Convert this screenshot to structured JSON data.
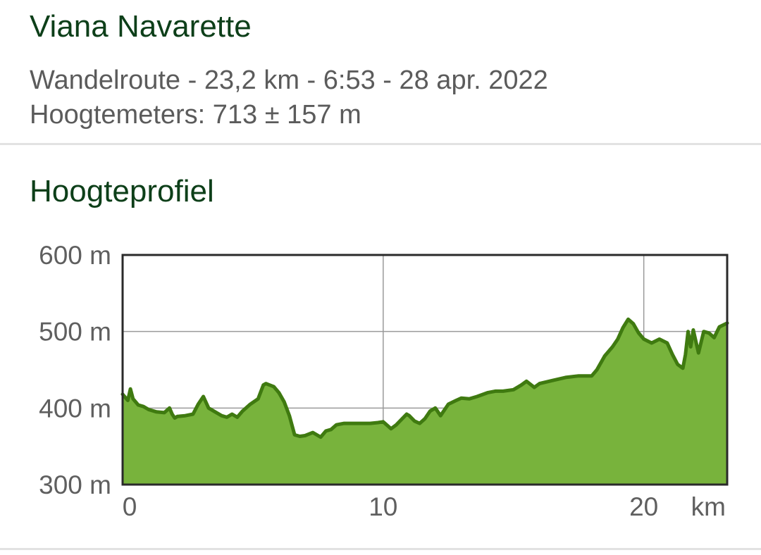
{
  "route": {
    "title": "Viana Navarette",
    "summary": "Wandelroute - 23,2 km - 6:53 - 28 apr. 2022",
    "elevation_gain": "Hoogtemeters: 713 ± 157 m"
  },
  "profile": {
    "section_title": "Hoogteprofiel"
  },
  "colors": {
    "title": "#0d3f19",
    "meta_text": "#5b5b5b",
    "area_fill": "#78b33c",
    "profile_line": "#3f7a10",
    "grid": "#9a9a9a",
    "frame": "#2a2a2a"
  },
  "chart_data": {
    "type": "area",
    "title": "Hoogteprofiel",
    "xlabel": "km",
    "ylabel": "",
    "xlim": [
      0,
      23.2
    ],
    "ylim": [
      300,
      600
    ],
    "x_ticks": [
      0,
      10,
      20
    ],
    "x_tick_labels": [
      "0",
      "10",
      "20"
    ],
    "x_unit_label": "km",
    "y_ticks": [
      300,
      400,
      500,
      600
    ],
    "y_tick_labels": [
      "300 m",
      "400 m",
      "500 m",
      "600 m"
    ],
    "grid": true,
    "legend": "none",
    "series": [
      {
        "x": [
          0,
          0.2,
          0.3,
          0.4,
          0.6,
          0.8,
          1.0,
          1.3,
          1.6,
          1.8,
          1.9,
          2.0,
          2.1,
          2.4,
          2.7,
          2.9,
          3.1,
          3.3,
          3.5,
          3.8,
          4.0,
          4.2,
          4.4,
          4.6,
          4.9,
          5.2,
          5.4,
          5.5,
          5.8,
          6.0,
          6.2,
          6.4,
          6.6,
          6.8,
          7.0,
          7.3,
          7.6,
          7.8,
          8.0,
          8.2,
          8.5,
          9.0,
          9.5,
          9.8,
          10.0,
          10.2,
          10.3,
          10.5,
          10.7,
          10.9,
          11.0,
          11.2,
          11.4,
          11.6,
          11.8,
          12.0,
          12.2,
          12.5,
          12.8,
          13.0,
          13.3,
          13.6,
          14.0,
          14.3,
          14.6,
          15.0,
          15.3,
          15.5,
          15.8,
          16.0,
          16.5,
          17.0,
          17.5,
          18.0,
          18.2,
          18.5,
          18.8,
          19.0,
          19.2,
          19.4,
          19.6,
          19.8,
          20.0,
          20.3,
          20.6,
          20.9,
          21.1,
          21.3,
          21.5,
          21.6,
          21.7,
          21.8,
          21.9,
          22.1,
          22.3,
          22.5,
          22.7,
          22.9,
          23.2
        ],
        "y": [
          418,
          410,
          425,
          412,
          404,
          402,
          398,
          395,
          394,
          400,
          392,
          387,
          389,
          390,
          392,
          405,
          415,
          400,
          396,
          390,
          388,
          392,
          388,
          396,
          405,
          412,
          430,
          432,
          428,
          420,
          408,
          390,
          365,
          363,
          364,
          368,
          362,
          370,
          372,
          378,
          380,
          380,
          380,
          381,
          382,
          376,
          373,
          378,
          385,
          392,
          390,
          383,
          380,
          386,
          396,
          400,
          390,
          405,
          410,
          413,
          412,
          415,
          420,
          422,
          422,
          424,
          430,
          435,
          427,
          432,
          436,
          440,
          442,
          442,
          450,
          468,
          480,
          490,
          505,
          516,
          510,
          498,
          490,
          485,
          490,
          485,
          470,
          457,
          452,
          470,
          500,
          480,
          502,
          472,
          500,
          498,
          492,
          506,
          511
        ]
      }
    ]
  }
}
